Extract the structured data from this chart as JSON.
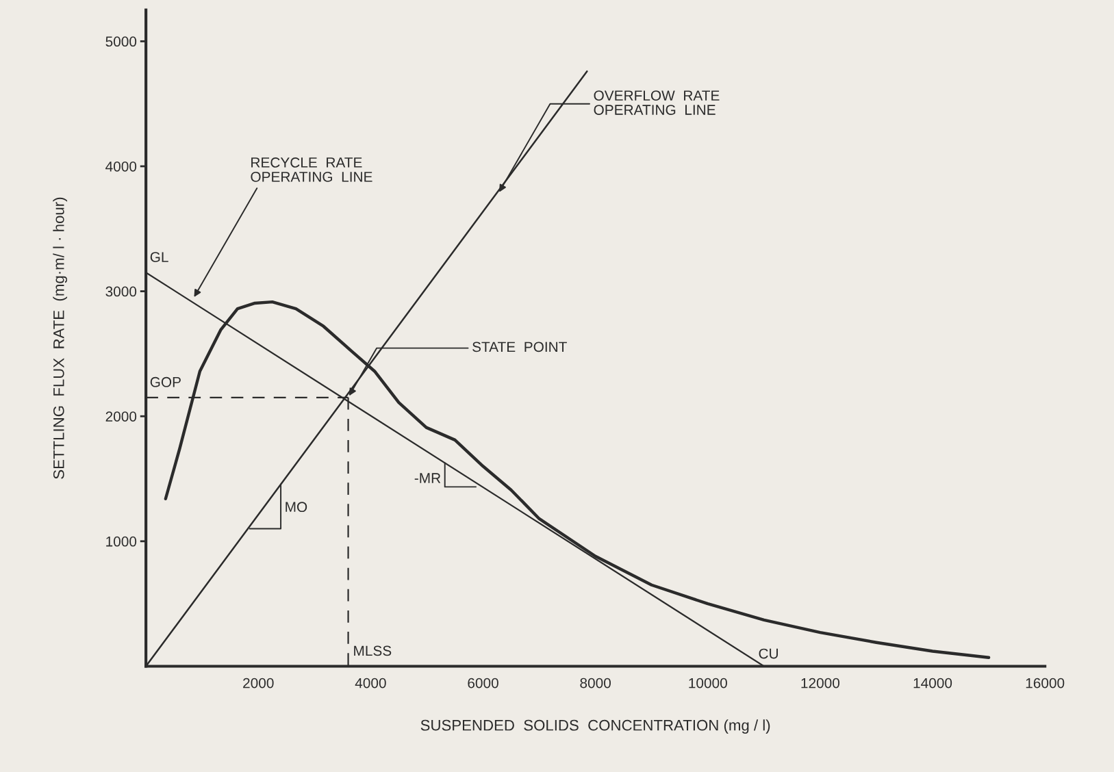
{
  "chart_data": {
    "type": "line",
    "xlabel": "SUSPENDED  SOLIDS  CONCENTRATION (mg / l)",
    "ylabel": "SETTLING  FLUX  RATE  (mg·m/ l · hour)",
    "xlim": [
      0,
      16000
    ],
    "ylim": [
      0,
      5250
    ],
    "xticks": [
      2000,
      4000,
      6000,
      8000,
      10000,
      12000,
      14000,
      16000
    ],
    "yticks": [
      1000,
      2000,
      3000,
      4000,
      5000
    ],
    "grid": false,
    "legend": false,
    "marker": "none",
    "series": [
      {
        "color": "#2b2b2b",
        "line_style": "solid",
        "x": [
          350,
          600,
          960,
          1330,
          1630,
          1940,
          2250,
          2670,
          3160,
          3650,
          4070,
          4500,
          4990,
          5500,
          6000,
          6500,
          7000,
          8000,
          9000,
          10000,
          11000,
          12000,
          13000,
          14000,
          15000
        ],
        "values": [
          1340,
          1740,
          2360,
          2690,
          2860,
          2905,
          2915,
          2860,
          2720,
          2525,
          2360,
          2110,
          1910,
          1810,
          1600,
          1410,
          1180,
          880,
          650,
          500,
          370,
          270,
          190,
          120,
          70
        ]
      },
      {
        "color": "#2b2b2b",
        "line_style": "solid",
        "x": [
          0,
          11000
        ],
        "values": [
          3150,
          0
        ]
      },
      {
        "color": "#2b2b2b",
        "line_style": "solid",
        "x": [
          0,
          7850
        ],
        "values": [
          0,
          4760
        ]
      },
      {
        "color": "#2b2b2b",
        "line_style": "dashed",
        "x": [
          0,
          3600
        ],
        "values": [
          2150,
          2150
        ]
      },
      {
        "color": "#2b2b2b",
        "line_style": "dashed",
        "x": [
          3600,
          3600
        ],
        "values": [
          2150,
          0
        ]
      }
    ],
    "annotations": [
      {
        "text": "RECYCLE  RATE\nOPERATING  LINE",
        "x": 840,
        "y": 2940
      },
      {
        "text": "OVERFLOW  RATE\nOPERATING  LINE",
        "x": 6270,
        "y": 3780
      },
      {
        "text": "STATE  POINT",
        "x": 3600,
        "y": 2150
      },
      {
        "text": "GL",
        "x": 0,
        "y": 3150
      },
      {
        "text": "GOP",
        "x": 0,
        "y": 2150
      },
      {
        "text": "MLSS",
        "x": 3600,
        "y": 0
      },
      {
        "text": "CU",
        "x": 11000,
        "y": 0
      },
      {
        "text": "-MR",
        "x": 5320,
        "y": 1625
      },
      {
        "text": "MO",
        "x": 2400,
        "y": 1455
      }
    ]
  }
}
